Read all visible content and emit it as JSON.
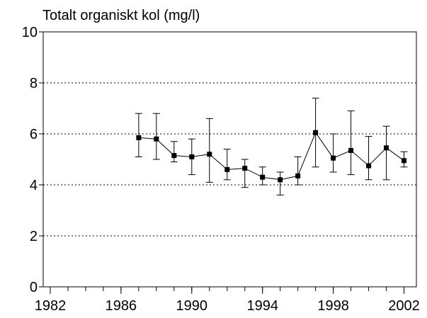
{
  "chart_data": {
    "type": "line",
    "title": "Totalt organiskt kol (mg/l)",
    "x": [
      1987,
      1988,
      1989,
      1990,
      1991,
      1992,
      1993,
      1994,
      1995,
      1996,
      1997,
      1998,
      1999,
      2000,
      2001,
      2002
    ],
    "series": [
      {
        "color": "#000000",
        "values": [
          5.85,
          5.8,
          5.15,
          5.1,
          5.2,
          4.6,
          4.65,
          4.3,
          4.2,
          4.35,
          6.05,
          5.05,
          5.35,
          4.75,
          5.45,
          4.95
        ],
        "low": [
          5.1,
          5.0,
          4.9,
          4.4,
          4.1,
          4.2,
          3.9,
          4.0,
          3.6,
          4.0,
          4.7,
          4.5,
          4.4,
          4.2,
          4.2,
          4.7
        ],
        "high": [
          6.8,
          6.8,
          5.7,
          5.8,
          6.6,
          5.4,
          5.0,
          4.7,
          4.5,
          5.1,
          7.4,
          6.0,
          6.9,
          5.9,
          6.3,
          5.3
        ]
      }
    ],
    "xlim": [
      1981.6,
      2002.7
    ],
    "xticks": [
      1982,
      1986,
      1990,
      1994,
      1998,
      2002
    ],
    "ylim": [
      0,
      10
    ],
    "yticks": [
      0,
      2,
      4,
      6,
      8,
      10
    ],
    "grid": true
  }
}
